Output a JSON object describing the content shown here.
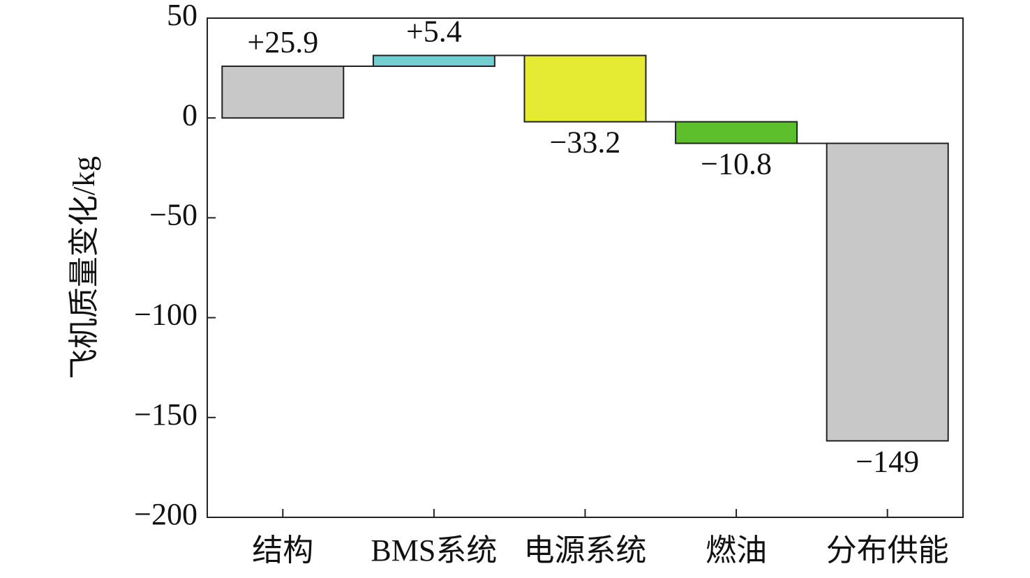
{
  "chart_data": {
    "type": "waterfall",
    "y_label": "飞机质量变化/kg",
    "categories": [
      "结构",
      "BMS系统",
      "电源系统",
      "燃油",
      "分布供能"
    ],
    "values": [
      25.9,
      5.4,
      -33.2,
      -10.8,
      -149
    ],
    "value_labels": [
      "+25.9",
      "+5.4",
      "−33.2",
      "−10.8",
      "−149"
    ],
    "colors": [
      "#c8c8c8",
      "#6fcfd1",
      "#e5ea33",
      "#5cbf2b",
      "#c8c8c8"
    ],
    "ylim": [
      -200,
      50
    ],
    "yticks": [
      {
        "value": -200,
        "label": "−200"
      },
      {
        "value": -150,
        "label": "−150"
      },
      {
        "value": -100,
        "label": "−100"
      },
      {
        "value": -50,
        "label": "−50"
      },
      0,
      50
    ]
  }
}
